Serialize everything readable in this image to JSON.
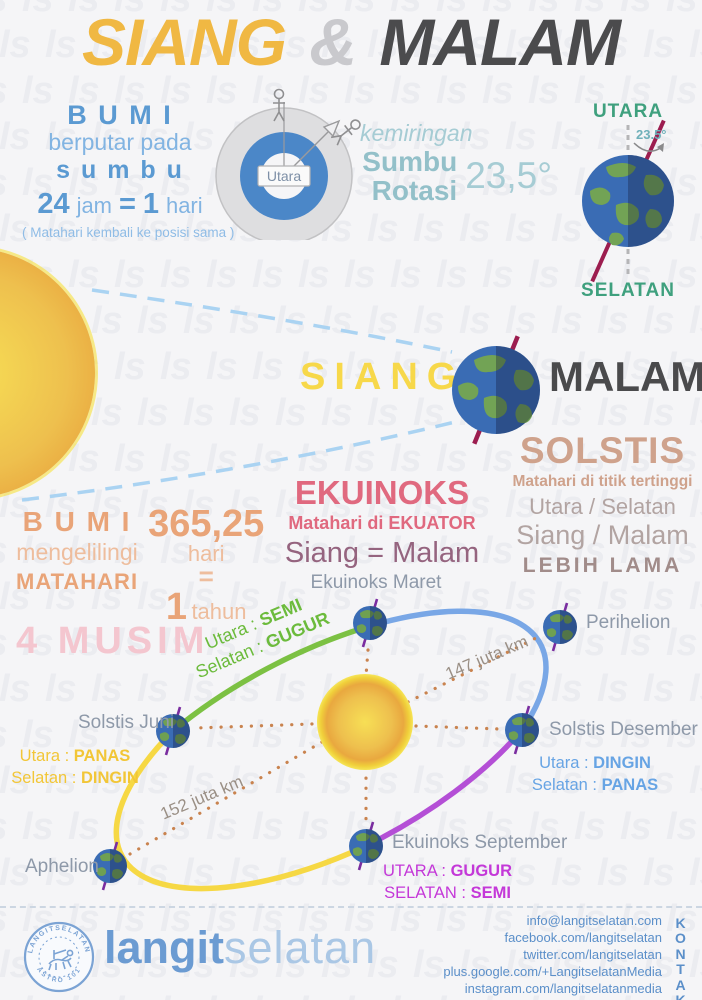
{
  "watermark": {
    "char": "ls"
  },
  "header": {
    "title_left": "SIANG",
    "amp": "&",
    "title_right": "MALAM"
  },
  "rotation": {
    "bumi": "B U M I",
    "line1": "berputar pada",
    "sumbu": "s u m b u",
    "h24": "24",
    "jam": "jam",
    "eq": "=",
    "one": "1",
    "hari": "hari",
    "note": "( Matahari kembali ke posisi sama )",
    "disc_label": "Utara"
  },
  "tilt": {
    "kemiringan": "kemiringan",
    "sumbu": "Sumbu",
    "rotasi": "Rotasi",
    "angle": "23,5°",
    "globe_angle": "23.5°",
    "utara": "UTARA",
    "selatan": "SELATAN"
  },
  "daynight": {
    "siang": "SIANG",
    "malam": "MALAM"
  },
  "solstis": {
    "title": "SOLSTIS",
    "sub": "Matahari di titik tertinggi",
    "line1": "Utara / Selatan",
    "line2": "Siang / Malam",
    "line3": "LEBIH LAMA"
  },
  "ekuinoks": {
    "title": "EKUINOKS",
    "sub": "Matahari di EKUATOR",
    "line": "Siang = Malam"
  },
  "revolution": {
    "bumi": "B U M I",
    "mengelilingi": "mengelilingi",
    "matahari": "MATAHARI",
    "days": "365,25",
    "hari": "hari",
    "eq": "=",
    "one": "1",
    "tahun": "tahun"
  },
  "musim_title": "4 MUSIM",
  "chart_data": {
    "type": "diagram-orbit",
    "title": "4 MUSIM - orbit Bumi mengelilingi Matahari",
    "rotation_period": {
      "value": 24,
      "unit": "jam",
      "equals": "1 hari"
    },
    "revolution_period": {
      "value": 365.25,
      "unit": "hari",
      "equals": "1 tahun"
    },
    "axial_tilt_deg": 23.5,
    "distances_juta_km": {
      "perihelion": 147,
      "aphelion": 152
    },
    "points": [
      {
        "name": "Ekuinoks Maret",
        "north": "SEMI",
        "south": "GUGUR"
      },
      {
        "name": "Perihelion"
      },
      {
        "name": "Solstis Desember",
        "north": "DINGIN",
        "south": "PANAS"
      },
      {
        "name": "Ekuinoks September",
        "north": "GUGUR",
        "south": "SEMI"
      },
      {
        "name": "Aphelion"
      },
      {
        "name": "Solstis Juni",
        "north": "PANAS",
        "south": "DINGIN"
      }
    ]
  },
  "orbit": {
    "em_name": "Ekuinoks Maret",
    "peri_name": "Perihelion",
    "sd_name": "Solstis Desember",
    "sj_name": "Solstis Juni",
    "aph_name": "Aphelion",
    "es_name": "Ekuinoks September",
    "dist_peri": "147 juta km",
    "dist_aph": "152 juta km",
    "em_pre1": "Utara : ",
    "em_val1": "SEMI",
    "em_pre2": "Selatan : ",
    "em_val2": "GUGUR",
    "sj_pre1": "Utara : ",
    "sj_val1": "PANAS",
    "sj_pre2": "Selatan : ",
    "sj_val2": "DINGIN",
    "sd_pre1": "Utara : ",
    "sd_val1": "DINGIN",
    "sd_pre2": "Selatan : ",
    "sd_val2": "PANAS",
    "es_pre1": "UTARA : ",
    "es_val1": "GUGUR",
    "es_pre2": "SELATAN : ",
    "es_val2": "SEMI"
  },
  "footer": {
    "stamp_top": "LANGITSELATAN",
    "stamp_bottom": "ASTRO 101",
    "brand_bold": "langit",
    "brand_light": "selatan",
    "kontak": "KONTAK",
    "contact": [
      "info@langitselatan.com",
      "facebook.com/langitselatan",
      "twitter.com/langitselatan",
      "plus.google.com/+LangitselatanMedia",
      "instagram.com/langitselatanmedia"
    ]
  },
  "colors": {
    "accent_yellow": "#f0b843",
    "accent_dark": "#4b4b4d",
    "blue": "#5b9ad2",
    "teal": "#a6ccd4",
    "green_axis_label": "#3fa07e",
    "axis_maroon": "#9c1d4f",
    "solstis_tan": "#cfa28c",
    "ekuinoks_pink": "#e0697f",
    "orange": "#e9a478",
    "musim_pink": "#f4c6cf",
    "orbit_green": "#7cc143",
    "orbit_blue": "#79a7e6",
    "orbit_yellow": "#f6d844",
    "orbit_magenta": "#b44fd6",
    "dots_brown": "#c9834f",
    "footer_blue": "#5b8fc9"
  }
}
